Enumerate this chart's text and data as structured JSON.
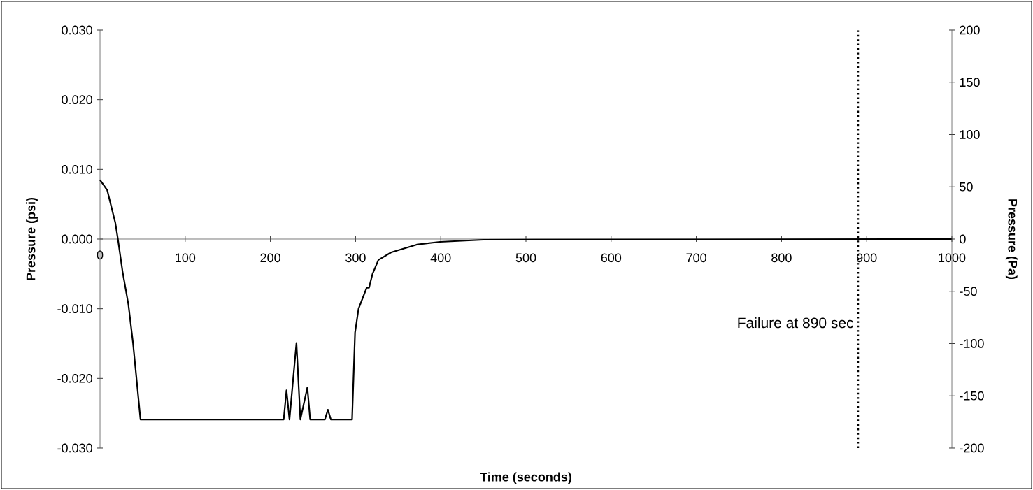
{
  "chart_data": {
    "type": "line",
    "xlabel": "Time (seconds)",
    "ylabel": "Pressure (psi)",
    "y2label": "Pressure (Pa)",
    "color": "#000000",
    "x": [
      0,
      8.5,
      18,
      21,
      26.5,
      33.3,
      38.8,
      47.5,
      215.6,
      218.9,
      222.4,
      230.6,
      235.2,
      243.4,
      246.7,
      264,
      267.5,
      271,
      295.9,
      299.4,
      303.5,
      313,
      315.8,
      319.9,
      326.8,
      341.8,
      371.8,
      399,
      450,
      1000
    ],
    "values": [
      0.0085,
      0.007,
      0.0023,
      0,
      -0.0047,
      -0.0094,
      -0.015,
      -0.0259,
      -0.0259,
      -0.0217,
      -0.0259,
      -0.0149,
      -0.0259,
      -0.0213,
      -0.0259,
      -0.0259,
      -0.0245,
      -0.0259,
      -0.0259,
      -0.0134,
      -0.01,
      -0.007,
      -0.007,
      -0.005,
      -0.003,
      -0.0019,
      -0.0008,
      -0.0004,
      -0.0001,
      0
    ],
    "xlim": [
      0,
      1000
    ],
    "xticks": [
      0,
      100,
      200,
      300,
      400,
      500,
      600,
      700,
      800,
      900,
      1000
    ],
    "ylim": [
      -0.03,
      0.03
    ],
    "yticks": [
      {
        "value": -0.03,
        "label": "-0.030"
      },
      {
        "value": -0.02,
        "label": "-0.020"
      },
      {
        "value": -0.01,
        "label": "-0.010"
      },
      {
        "value": 0,
        "label": "0.000"
      },
      {
        "value": 0.01,
        "label": "0.010"
      },
      {
        "value": 0.02,
        "label": "0.020"
      },
      {
        "value": 0.03,
        "label": "0.030"
      }
    ],
    "y2lim": [
      -200,
      200
    ],
    "y2ticks": [
      -200,
      -150,
      -100,
      -50,
      0,
      50,
      100,
      150,
      200
    ],
    "ref_lines": [
      {
        "axis": "x",
        "value": 890,
        "label": "Failure at 890 sec",
        "color": "#000000",
        "line_style": "dotted"
      }
    ]
  }
}
